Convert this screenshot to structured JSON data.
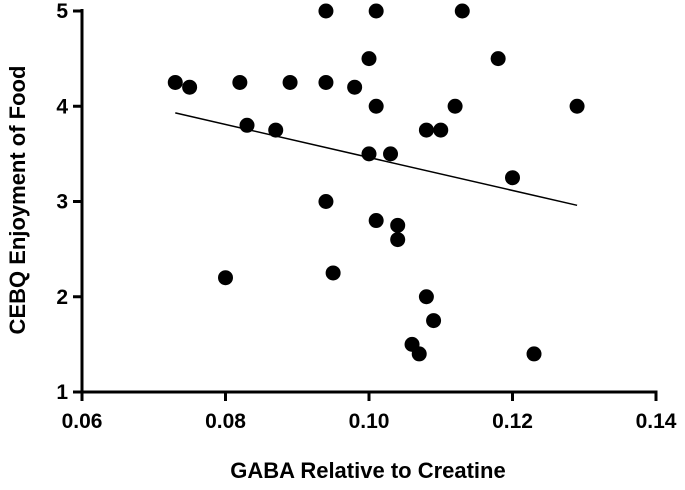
{
  "chart_data": {
    "type": "scatter",
    "title": "",
    "xlabel": "GABA Relative to Creatine",
    "ylabel": "CEBQ Enjoyment of Food",
    "xlim": [
      0.06,
      0.14
    ],
    "ylim": [
      1,
      5
    ],
    "x_ticks": [
      "0.06",
      "0.08",
      "0.10",
      "0.12",
      "0.14"
    ],
    "y_ticks": [
      "1",
      "2",
      "3",
      "4",
      "5"
    ],
    "grid": false,
    "legend": "none",
    "point_color": "#000000",
    "points": [
      {
        "x": 0.073,
        "y": 4.25
      },
      {
        "x": 0.075,
        "y": 4.2
      },
      {
        "x": 0.08,
        "y": 2.2
      },
      {
        "x": 0.082,
        "y": 4.25
      },
      {
        "x": 0.083,
        "y": 3.8
      },
      {
        "x": 0.087,
        "y": 3.75
      },
      {
        "x": 0.089,
        "y": 4.25
      },
      {
        "x": 0.094,
        "y": 5.0
      },
      {
        "x": 0.094,
        "y": 4.25
      },
      {
        "x": 0.094,
        "y": 3.0
      },
      {
        "x": 0.095,
        "y": 2.25
      },
      {
        "x": 0.098,
        "y": 4.2
      },
      {
        "x": 0.1,
        "y": 4.5
      },
      {
        "x": 0.1,
        "y": 3.5
      },
      {
        "x": 0.101,
        "y": 5.0
      },
      {
        "x": 0.101,
        "y": 4.0
      },
      {
        "x": 0.101,
        "y": 2.8
      },
      {
        "x": 0.103,
        "y": 3.5
      },
      {
        "x": 0.104,
        "y": 2.75
      },
      {
        "x": 0.104,
        "y": 2.6
      },
      {
        "x": 0.106,
        "y": 1.5
      },
      {
        "x": 0.107,
        "y": 1.4
      },
      {
        "x": 0.108,
        "y": 3.75
      },
      {
        "x": 0.108,
        "y": 2.0
      },
      {
        "x": 0.109,
        "y": 1.75
      },
      {
        "x": 0.11,
        "y": 3.75
      },
      {
        "x": 0.112,
        "y": 4.0
      },
      {
        "x": 0.113,
        "y": 5.0
      },
      {
        "x": 0.118,
        "y": 4.5
      },
      {
        "x": 0.12,
        "y": 3.25
      },
      {
        "x": 0.123,
        "y": 1.4
      },
      {
        "x": 0.129,
        "y": 4.0
      }
    ],
    "fit_line": {
      "x": [
        0.073,
        0.129
      ],
      "y": [
        3.93,
        2.96
      ]
    }
  }
}
